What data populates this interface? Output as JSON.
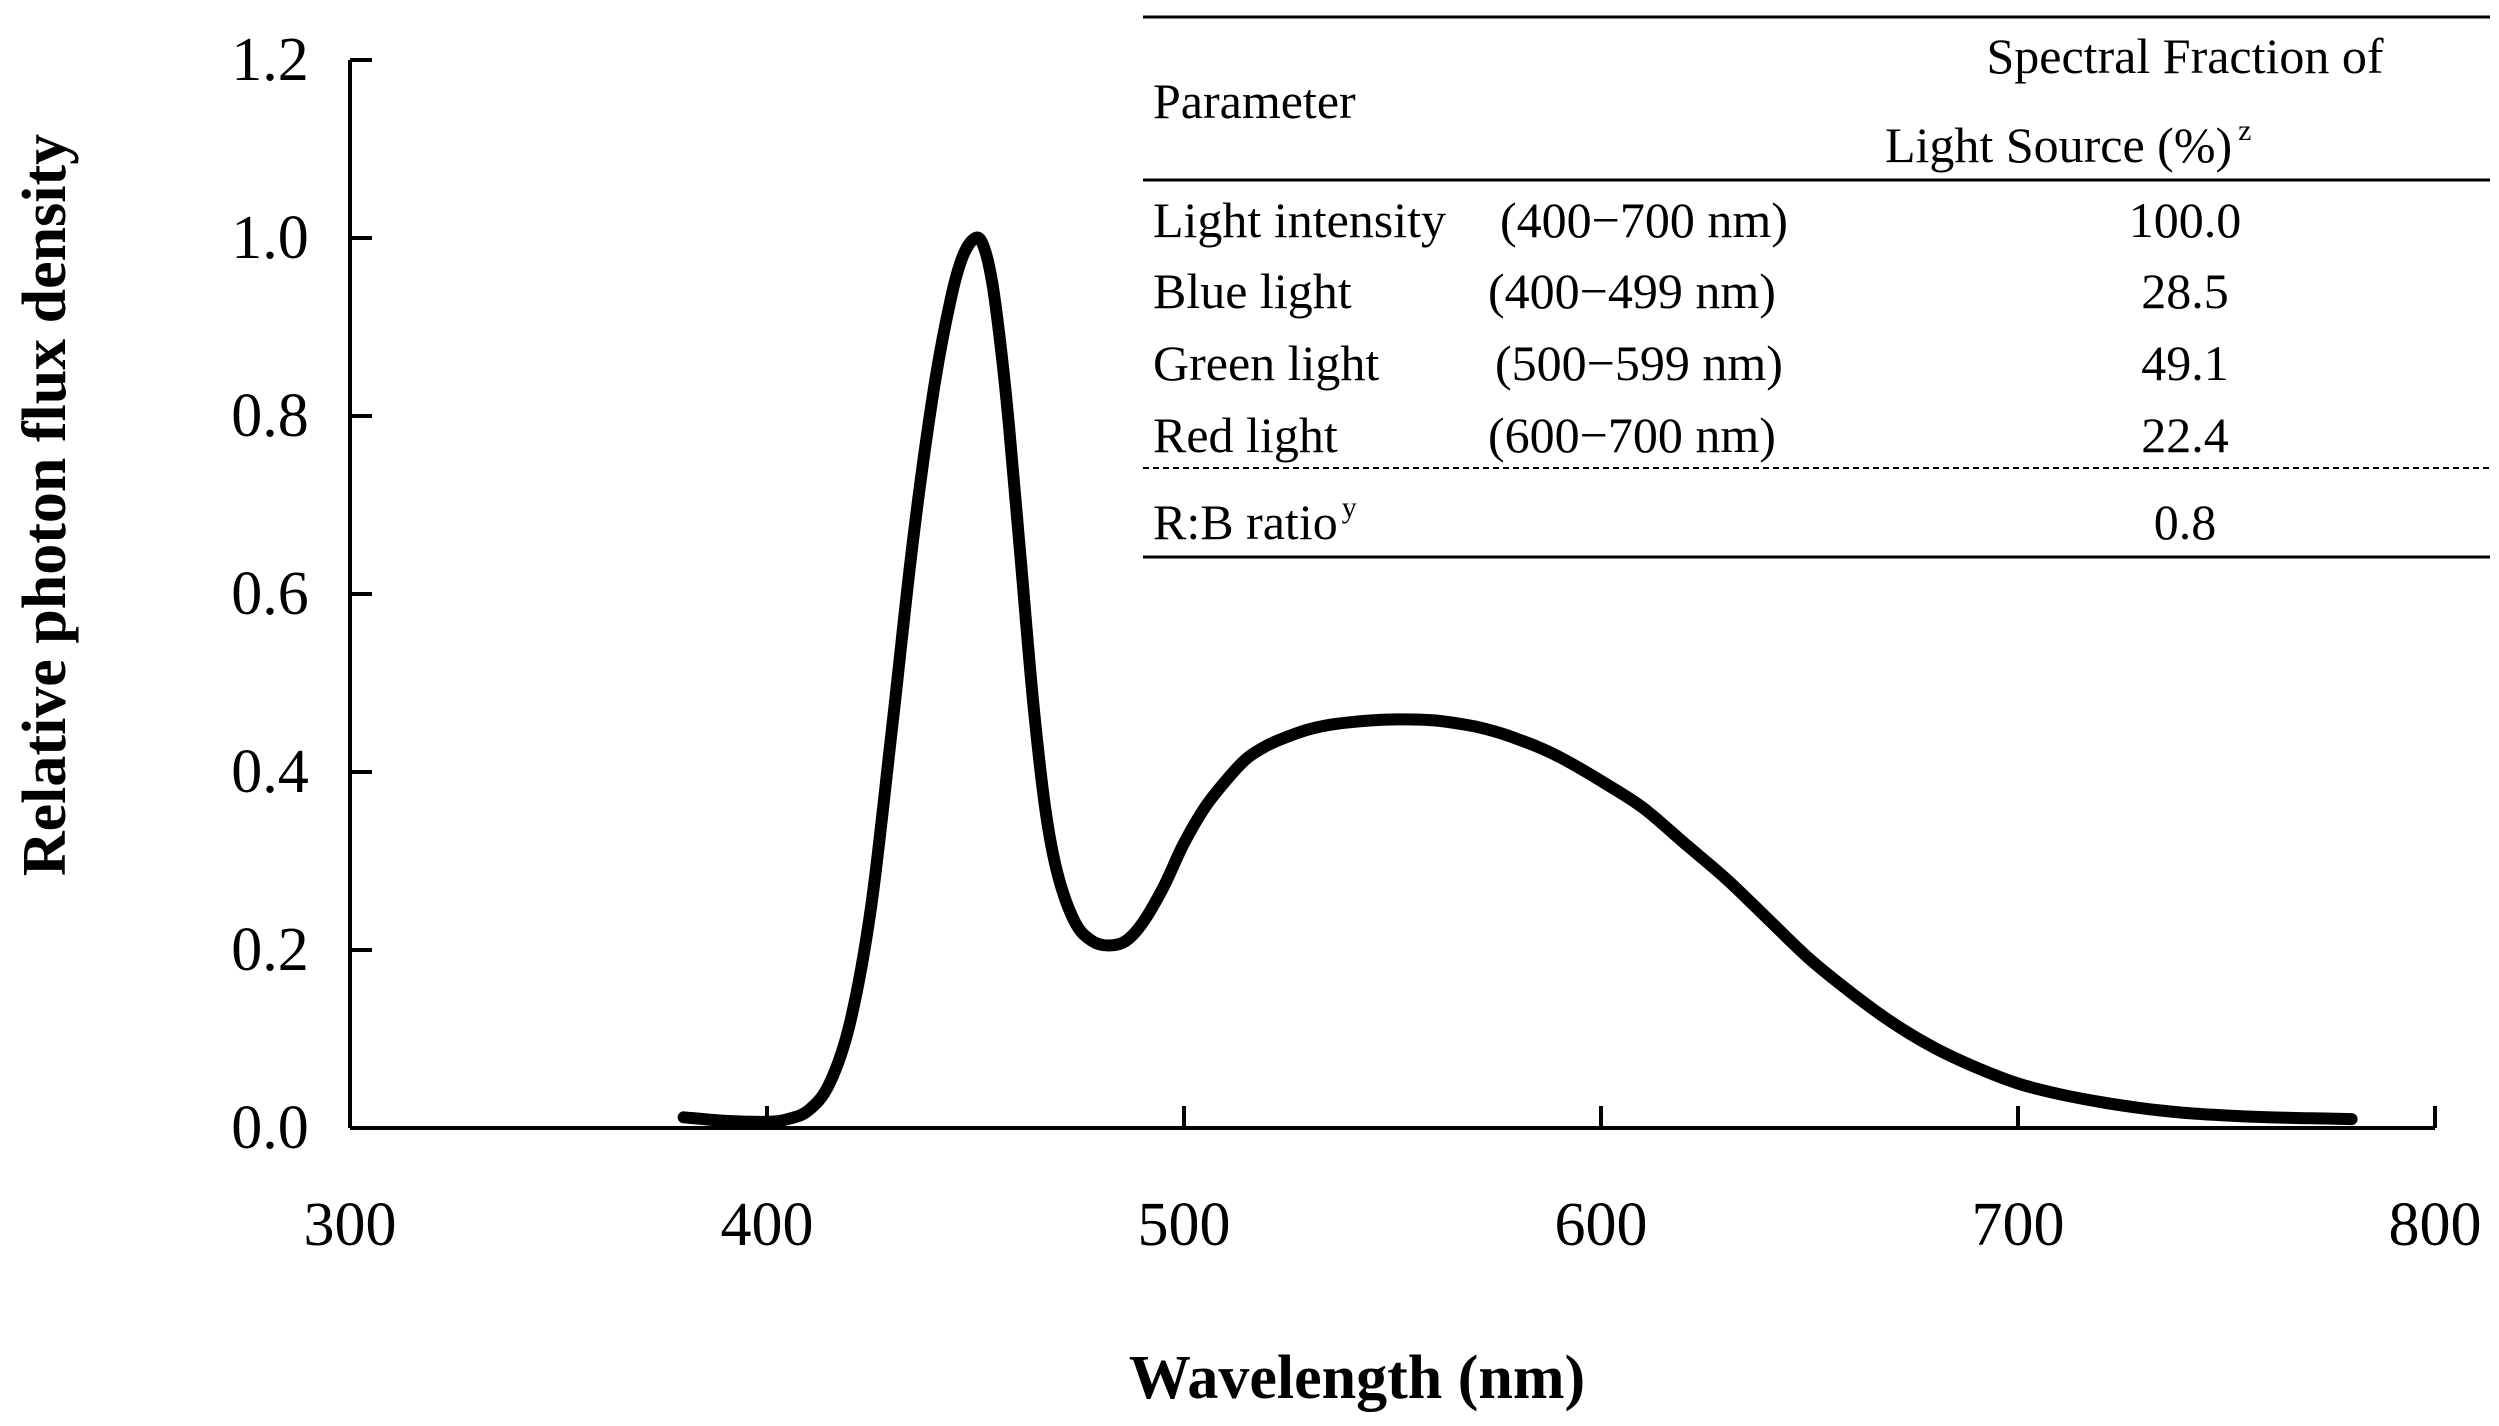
{
  "chart_data": {
    "type": "line",
    "xlabel": "Wavelength (nm)",
    "ylabel": "Relative photon flux density",
    "xlim": [
      300,
      800
    ],
    "ylim": [
      0,
      1.2
    ],
    "x_ticks": [
      "300",
      "400",
      "500",
      "600",
      "700",
      "800"
    ],
    "y_ticks": [
      "0.0",
      "0.2",
      "0.4",
      "0.6",
      "0.8",
      "1.0",
      "1.2"
    ],
    "grid": false,
    "line_color": "#000000",
    "series": [
      {
        "x": [
          380,
          390,
          400,
          405,
          410,
          415,
          420,
          425,
          430,
          435,
          440,
          444,
          447,
          450,
          452,
          454,
          456,
          458,
          461,
          464,
          467,
          470,
          474,
          478,
          482,
          486,
          490,
          495,
          500,
          505,
          510,
          515,
          520,
          525,
          530,
          535,
          540,
          545,
          550,
          555,
          560,
          565,
          570,
          575,
          580,
          585,
          590,
          595,
          600,
          610,
          620,
          630,
          640,
          650,
          660,
          670,
          680,
          690,
          700,
          710,
          720,
          730,
          740,
          750,
          760,
          770,
          780
        ],
        "y": [
          0.012,
          0.008,
          0.007,
          0.01,
          0.02,
          0.05,
          0.12,
          0.25,
          0.45,
          0.66,
          0.83,
          0.93,
          0.98,
          1.0,
          0.99,
          0.95,
          0.88,
          0.79,
          0.63,
          0.47,
          0.35,
          0.28,
          0.23,
          0.21,
          0.205,
          0.21,
          0.23,
          0.27,
          0.32,
          0.36,
          0.39,
          0.415,
          0.43,
          0.44,
          0.448,
          0.453,
          0.456,
          0.458,
          0.459,
          0.459,
          0.458,
          0.455,
          0.451,
          0.445,
          0.437,
          0.428,
          0.417,
          0.404,
          0.39,
          0.36,
          0.32,
          0.28,
          0.235,
          0.19,
          0.152,
          0.118,
          0.09,
          0.068,
          0.05,
          0.038,
          0.029,
          0.022,
          0.017,
          0.014,
          0.012,
          0.011,
          0.01
        ]
      }
    ]
  },
  "table": {
    "header_param": "Parameter",
    "header_value_line1": "Spectral Fraction of",
    "header_value_line2": "Light Source (%)",
    "header_value_sup": "z",
    "rows": [
      {
        "name": "Light intensity",
        "range": "(400−700 nm)",
        "value": "100.0"
      },
      {
        "name": "Blue light",
        "range": "(400−499 nm)",
        "value": "28.5"
      },
      {
        "name": "Green light",
        "range": "(500−599 nm)",
        "value": "49.1"
      },
      {
        "name": "Red light",
        "range": "(600−700 nm)",
        "value": "22.4"
      }
    ],
    "ratio_label": "R:B ratio",
    "ratio_sup": "y",
    "ratio_value": "0.8"
  }
}
